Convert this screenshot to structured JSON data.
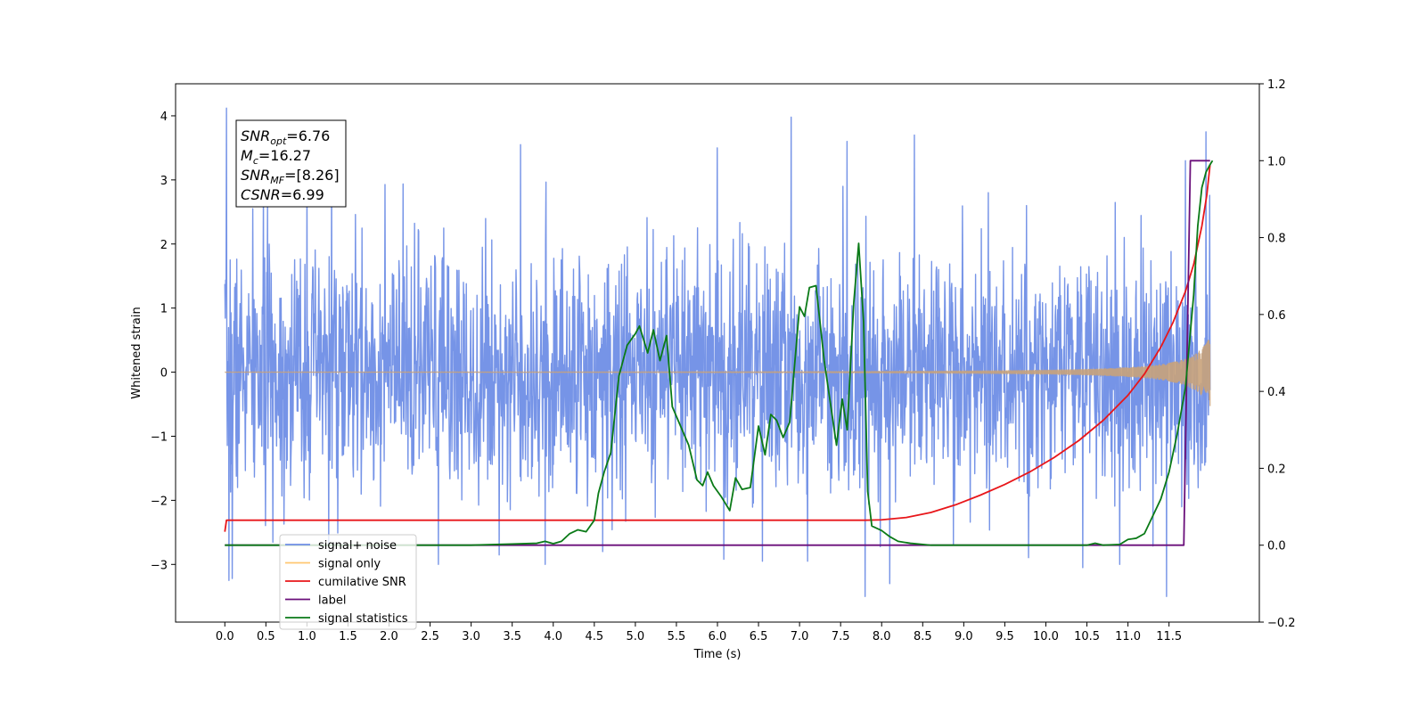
{
  "chart_data": {
    "type": "line",
    "xlabel": "Time (s)",
    "ylabel": "Whitened strain",
    "xlim": [
      -0.6,
      12.6
    ],
    "ylim": [
      -3.9,
      4.5
    ],
    "y2lim": [
      -0.2,
      1.2
    ],
    "x_ticks": [
      0.0,
      0.5,
      1.0,
      1.5,
      2.0,
      2.5,
      3.0,
      3.5,
      4.0,
      4.5,
      5.0,
      5.5,
      6.0,
      6.5,
      7.0,
      7.5,
      8.0,
      8.5,
      9.0,
      9.5,
      10.0,
      10.5,
      11.0,
      11.5
    ],
    "x_tick_labels": [
      "0.0",
      "0.5",
      "1.0",
      "1.5",
      "2.0",
      "2.5",
      "3.0",
      "3.5",
      "4.0",
      "4.5",
      "5.0",
      "5.5",
      "6.0",
      "6.5",
      "7.0",
      "7.5",
      "8.0",
      "8.5",
      "9.0",
      "9.5",
      "10.0",
      "10.5",
      "11.0",
      "11.5"
    ],
    "y_ticks": [
      -3,
      -2,
      -1,
      0,
      1,
      2,
      3,
      4
    ],
    "y_tick_labels": [
      "−3",
      "−2",
      "−1",
      "0",
      "1",
      "2",
      "3",
      "4"
    ],
    "y2_ticks": [
      -0.2,
      0.0,
      0.2,
      0.4,
      0.6,
      0.8,
      1.0,
      1.2
    ],
    "y2_tick_labels": [
      "−0.2",
      "0.0",
      "0.2",
      "0.4",
      "0.6",
      "0.8",
      "1.0",
      "1.2"
    ],
    "grid": false,
    "legend_position": "lower-left",
    "annotation": {
      "lines": [
        {
          "main": "SNR",
          "sub": "opt",
          "rest": "=6.76"
        },
        {
          "main": "M",
          "sub": "c",
          "rest": "=16.27"
        },
        {
          "main": "SNR",
          "sub": "MF",
          "rest": "=[8.26]"
        },
        {
          "main": "CSNR",
          "sub": "",
          "rest": "=6.99"
        }
      ]
    },
    "series": [
      {
        "name": "signal+ noise",
        "axis": "left",
        "color": "#6f8ee6",
        "noise_model": {
          "x_start": 0.0,
          "x_end": 12.0,
          "samples": 2400,
          "std": 0.95,
          "seed": 7
        },
        "spikes": [
          {
            "x": 0.02,
            "y": 4.12
          },
          {
            "x": 0.05,
            "y": -3.25
          },
          {
            "x": 0.09,
            "y": -3.22
          },
          {
            "x": 0.52,
            "y": 2.62
          },
          {
            "x": 1.0,
            "y": 3.1
          },
          {
            "x": 1.3,
            "y": 3.3
          },
          {
            "x": 3.6,
            "y": 3.55
          },
          {
            "x": 3.9,
            "y": -3.0
          },
          {
            "x": 6.0,
            "y": 3.5
          },
          {
            "x": 6.08,
            "y": -2.92
          },
          {
            "x": 6.55,
            "y": -2.95
          },
          {
            "x": 6.9,
            "y": 3.98
          },
          {
            "x": 7.58,
            "y": 3.6
          },
          {
            "x": 7.8,
            "y": -3.5
          },
          {
            "x": 8.1,
            "y": -3.3
          },
          {
            "x": 8.4,
            "y": 3.7
          },
          {
            "x": 9.3,
            "y": 2.8
          },
          {
            "x": 10.9,
            "y": -3.0
          },
          {
            "x": 11.47,
            "y": -3.5
          },
          {
            "x": 11.7,
            "y": 3.3
          },
          {
            "x": 11.95,
            "y": 3.75
          },
          {
            "x": 4.6,
            "y": -2.8
          },
          {
            "x": 2.6,
            "y": -3.0
          },
          {
            "x": 7.1,
            "y": -2.95
          },
          {
            "x": 10.45,
            "y": -3.05
          }
        ]
      },
      {
        "name": "signal only",
        "axis": "left",
        "color": "#c9a27a",
        "chirp": {
          "x_start": 0.0,
          "x_end": 12.0,
          "t_coalesce": 12.3,
          "amp_max": 0.55
        }
      },
      {
        "name": "cumilative SNR",
        "axis": "right",
        "color": "#e8161a",
        "points": [
          [
            0.0,
            0.035
          ],
          [
            0.02,
            0.065
          ],
          [
            7.8,
            0.065
          ],
          [
            8.0,
            0.066
          ],
          [
            8.3,
            0.072
          ],
          [
            8.6,
            0.085
          ],
          [
            8.9,
            0.105
          ],
          [
            9.2,
            0.13
          ],
          [
            9.5,
            0.158
          ],
          [
            9.8,
            0.19
          ],
          [
            10.1,
            0.228
          ],
          [
            10.4,
            0.272
          ],
          [
            10.7,
            0.325
          ],
          [
            11.0,
            0.39
          ],
          [
            11.2,
            0.445
          ],
          [
            11.4,
            0.515
          ],
          [
            11.55,
            0.58
          ],
          [
            11.7,
            0.66
          ],
          [
            11.8,
            0.73
          ],
          [
            11.9,
            0.83
          ],
          [
            11.96,
            0.91
          ],
          [
            12.0,
            0.99
          ]
        ]
      },
      {
        "name": "label",
        "axis": "right",
        "color": "#6a0f7a",
        "points": [
          [
            0.0,
            0.0
          ],
          [
            11.68,
            0.0
          ],
          [
            11.76,
            1.0
          ],
          [
            12.0,
            1.0
          ]
        ]
      },
      {
        "name": "signal statistics",
        "axis": "right",
        "color": "#0a7a17",
        "points": [
          [
            0.0,
            0.0
          ],
          [
            3.0,
            0.0
          ],
          [
            3.5,
            0.003
          ],
          [
            3.8,
            0.005
          ],
          [
            3.9,
            0.01
          ],
          [
            4.0,
            0.004
          ],
          [
            4.1,
            0.01
          ],
          [
            4.2,
            0.03
          ],
          [
            4.3,
            0.04
          ],
          [
            4.4,
            0.035
          ],
          [
            4.5,
            0.065
          ],
          [
            4.55,
            0.135
          ],
          [
            4.62,
            0.19
          ],
          [
            4.7,
            0.24
          ],
          [
            4.8,
            0.44
          ],
          [
            4.9,
            0.52
          ],
          [
            5.0,
            0.55
          ],
          [
            5.05,
            0.57
          ],
          [
            5.15,
            0.5
          ],
          [
            5.22,
            0.56
          ],
          [
            5.3,
            0.48
          ],
          [
            5.38,
            0.545
          ],
          [
            5.45,
            0.36
          ],
          [
            5.55,
            0.31
          ],
          [
            5.65,
            0.26
          ],
          [
            5.75,
            0.17
          ],
          [
            5.82,
            0.155
          ],
          [
            5.88,
            0.19
          ],
          [
            5.95,
            0.155
          ],
          [
            6.05,
            0.125
          ],
          [
            6.15,
            0.09
          ],
          [
            6.22,
            0.175
          ],
          [
            6.3,
            0.145
          ],
          [
            6.4,
            0.15
          ],
          [
            6.5,
            0.31
          ],
          [
            6.58,
            0.235
          ],
          [
            6.65,
            0.34
          ],
          [
            6.72,
            0.325
          ],
          [
            6.8,
            0.28
          ],
          [
            6.88,
            0.32
          ],
          [
            7.0,
            0.62
          ],
          [
            7.06,
            0.595
          ],
          [
            7.12,
            0.67
          ],
          [
            7.2,
            0.675
          ],
          [
            7.3,
            0.48
          ],
          [
            7.45,
            0.26
          ],
          [
            7.52,
            0.38
          ],
          [
            7.58,
            0.3
          ],
          [
            7.66,
            0.63
          ],
          [
            7.72,
            0.785
          ],
          [
            7.78,
            0.58
          ],
          [
            7.83,
            0.14
          ],
          [
            7.88,
            0.05
          ],
          [
            8.0,
            0.038
          ],
          [
            8.1,
            0.022
          ],
          [
            8.2,
            0.01
          ],
          [
            8.35,
            0.005
          ],
          [
            8.6,
            0.0
          ],
          [
            9.0,
            0.0
          ],
          [
            10.5,
            0.0
          ],
          [
            10.6,
            0.005
          ],
          [
            10.7,
            0.0
          ],
          [
            10.9,
            0.002
          ],
          [
            11.0,
            0.015
          ],
          [
            11.1,
            0.018
          ],
          [
            11.2,
            0.03
          ],
          [
            11.3,
            0.075
          ],
          [
            11.4,
            0.12
          ],
          [
            11.5,
            0.19
          ],
          [
            11.6,
            0.29
          ],
          [
            11.7,
            0.41
          ],
          [
            11.8,
            0.65
          ],
          [
            11.85,
            0.83
          ],
          [
            11.9,
            0.93
          ],
          [
            11.95,
            0.97
          ],
          [
            12.0,
            0.99
          ],
          [
            12.03,
            1.0
          ]
        ]
      }
    ]
  }
}
